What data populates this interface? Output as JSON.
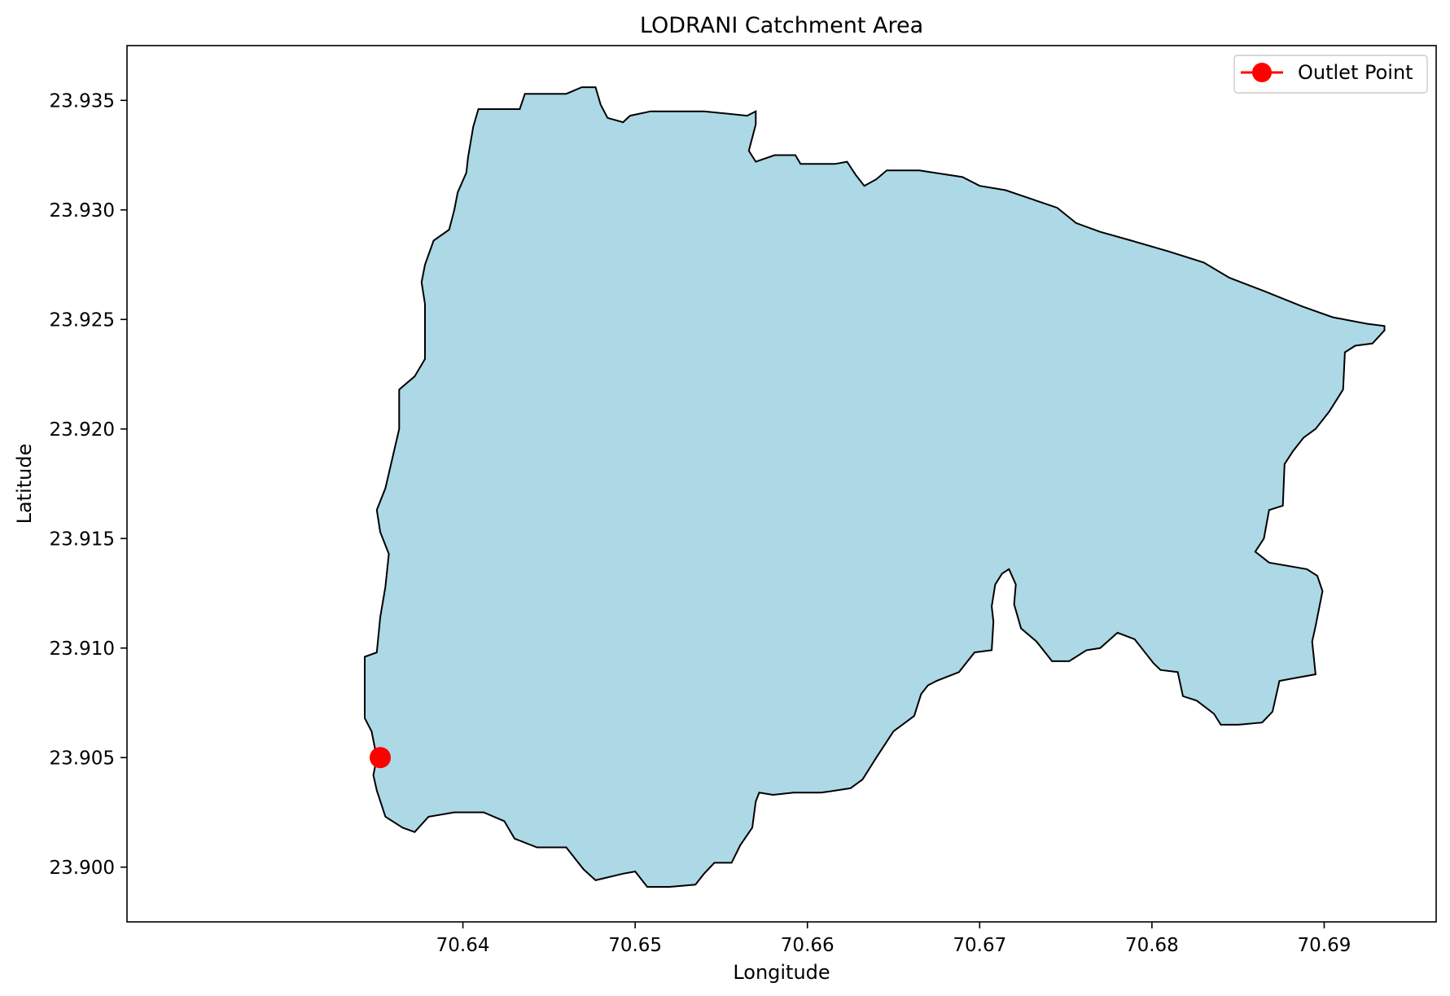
{
  "chart_data": {
    "type": "map",
    "title": "LODRANI Catchment Area",
    "xlabel": "Longitude",
    "ylabel": "Latitude",
    "xlim": [
      70.6205,
      70.6965
    ],
    "ylim": [
      23.8975,
      23.9375
    ],
    "x_ticks": [
      70.64,
      70.65,
      70.66,
      70.67,
      70.68,
      70.69
    ],
    "x_tick_labels": [
      "70.64",
      "70.65",
      "70.66",
      "70.67",
      "70.68",
      "70.69"
    ],
    "y_ticks": [
      23.9,
      23.905,
      23.91,
      23.915,
      23.92,
      23.925,
      23.93,
      23.935
    ],
    "y_tick_labels": [
      "23.900",
      "23.905",
      "23.910",
      "23.915",
      "23.920",
      "23.925",
      "23.930",
      "23.935"
    ],
    "grid": false,
    "legend": {
      "placement": "top-right",
      "entries": [
        {
          "label": "Outlet Point",
          "marker": "circle",
          "color": "#ff0000"
        }
      ]
    },
    "catchment": {
      "fill": "#add8e6",
      "edge": "#000000",
      "boundary": [
        [
          70.6343,
          23.9068
        ],
        [
          70.6343,
          23.9096
        ],
        [
          70.635,
          23.9098
        ],
        [
          70.6352,
          23.9114
        ],
        [
          70.6355,
          23.9128
        ],
        [
          70.6357,
          23.9143
        ],
        [
          70.6352,
          23.9153
        ],
        [
          70.635,
          23.9163
        ],
        [
          70.6355,
          23.9173
        ],
        [
          70.6363,
          23.92
        ],
        [
          70.6363,
          23.9218
        ],
        [
          70.6372,
          23.9224
        ],
        [
          70.6378,
          23.9232
        ],
        [
          70.6378,
          23.9257
        ],
        [
          70.6376,
          23.9267
        ],
        [
          70.6378,
          23.9275
        ],
        [
          70.6383,
          23.9286
        ],
        [
          70.6392,
          23.9291
        ],
        [
          70.6395,
          23.93
        ],
        [
          70.6397,
          23.9308
        ],
        [
          70.6402,
          23.9317
        ],
        [
          70.6403,
          23.9324
        ],
        [
          70.6406,
          23.9338
        ],
        [
          70.6409,
          23.9346
        ],
        [
          70.6433,
          23.9346
        ],
        [
          70.6436,
          23.9353
        ],
        [
          70.646,
          23.9353
        ],
        [
          70.6469,
          23.9356
        ],
        [
          70.6477,
          23.9356
        ],
        [
          70.648,
          23.9348
        ],
        [
          70.6484,
          23.9342
        ],
        [
          70.6493,
          23.934
        ],
        [
          70.6497,
          23.9343
        ],
        [
          70.6509,
          23.9345
        ],
        [
          70.654,
          23.9345
        ],
        [
          70.6565,
          23.9343
        ],
        [
          70.657,
          23.9345
        ],
        [
          70.657,
          23.9339
        ],
        [
          70.6566,
          23.9327
        ],
        [
          70.657,
          23.9322
        ],
        [
          70.6581,
          23.9325
        ],
        [
          70.6593,
          23.9325
        ],
        [
          70.6596,
          23.9321
        ],
        [
          70.6616,
          23.9321
        ],
        [
          70.6623,
          23.9322
        ],
        [
          70.6628,
          23.9316
        ],
        [
          70.6633,
          23.9311
        ],
        [
          70.664,
          23.9314
        ],
        [
          70.6646,
          23.9318
        ],
        [
          70.6656,
          23.9318
        ],
        [
          70.6665,
          23.9318
        ],
        [
          70.669,
          23.9315
        ],
        [
          70.67,
          23.9311
        ],
        [
          70.6715,
          23.9309
        ],
        [
          70.673,
          23.9305
        ],
        [
          70.6745,
          23.9301
        ],
        [
          70.6756,
          23.9294
        ],
        [
          70.677,
          23.929
        ],
        [
          70.6788,
          23.9286
        ],
        [
          70.681,
          23.9281
        ],
        [
          70.683,
          23.9276
        ],
        [
          70.6845,
          23.9269
        ],
        [
          70.6865,
          23.9263
        ],
        [
          70.6887,
          23.9256
        ],
        [
          70.6905,
          23.9251
        ],
        [
          70.6925,
          23.9248
        ],
        [
          70.6935,
          23.9247
        ],
        [
          70.6935,
          23.9245
        ],
        [
          70.6928,
          23.9239
        ],
        [
          70.6918,
          23.9238
        ],
        [
          70.6912,
          23.9235
        ],
        [
          70.6911,
          23.9218
        ],
        [
          70.6903,
          23.9208
        ],
        [
          70.6895,
          23.92
        ],
        [
          70.6888,
          23.9196
        ],
        [
          70.6882,
          23.919
        ],
        [
          70.6877,
          23.9184
        ],
        [
          70.6876,
          23.9165
        ],
        [
          70.6868,
          23.9163
        ],
        [
          70.6865,
          23.915
        ],
        [
          70.686,
          23.9144
        ],
        [
          70.6868,
          23.9139
        ],
        [
          70.689,
          23.9136
        ],
        [
          70.6896,
          23.9133
        ],
        [
          70.6899,
          23.9126
        ],
        [
          70.6895,
          23.911
        ],
        [
          70.6893,
          23.9103
        ],
        [
          70.6895,
          23.9088
        ],
        [
          70.6881,
          23.9086
        ],
        [
          70.6874,
          23.9085
        ],
        [
          70.687,
          23.9071
        ],
        [
          70.6864,
          23.9066
        ],
        [
          70.685,
          23.9065
        ],
        [
          70.684,
          23.9065
        ],
        [
          70.6836,
          23.907
        ],
        [
          70.6826,
          23.9076
        ],
        [
          70.6818,
          23.9078
        ],
        [
          70.6815,
          23.9089
        ],
        [
          70.6805,
          23.909
        ],
        [
          70.6801,
          23.9093
        ],
        [
          70.679,
          23.9104
        ],
        [
          70.678,
          23.9107
        ],
        [
          70.677,
          23.91
        ],
        [
          70.6762,
          23.9099
        ],
        [
          70.6752,
          23.9094
        ],
        [
          70.6742,
          23.9094
        ],
        [
          70.6733,
          23.9103
        ],
        [
          70.6724,
          23.9109
        ],
        [
          70.672,
          23.912
        ],
        [
          70.6721,
          23.9129
        ],
        [
          70.6717,
          23.9136
        ],
        [
          70.6713,
          23.9134
        ],
        [
          70.6709,
          23.9129
        ],
        [
          70.6707,
          23.9119
        ],
        [
          70.6708,
          23.9112
        ],
        [
          70.6707,
          23.9099
        ],
        [
          70.6697,
          23.9098
        ],
        [
          70.6688,
          23.9089
        ],
        [
          70.6675,
          23.9085
        ],
        [
          70.667,
          23.9083
        ],
        [
          70.6666,
          23.9079
        ],
        [
          70.6662,
          23.9069
        ],
        [
          70.665,
          23.9062
        ],
        [
          70.664,
          23.905
        ],
        [
          70.6632,
          23.904
        ],
        [
          70.6625,
          23.9036
        ],
        [
          70.6608,
          23.9034
        ],
        [
          70.6592,
          23.9034
        ],
        [
          70.658,
          23.9033
        ],
        [
          70.6572,
          23.9034
        ],
        [
          70.657,
          23.903
        ],
        [
          70.6568,
          23.9018
        ],
        [
          70.6561,
          23.901
        ],
        [
          70.6556,
          23.9002
        ],
        [
          70.6546,
          23.9002
        ],
        [
          70.654,
          23.8997
        ],
        [
          70.6535,
          23.8992
        ],
        [
          70.652,
          23.8991
        ],
        [
          70.6507,
          23.8991
        ],
        [
          70.65,
          23.8998
        ],
        [
          70.6493,
          23.8997
        ],
        [
          70.6477,
          23.8994
        ],
        [
          70.647,
          23.8999
        ],
        [
          70.646,
          23.9009
        ],
        [
          70.6443,
          23.9009
        ],
        [
          70.643,
          23.9013
        ],
        [
          70.6424,
          23.9021
        ],
        [
          70.6412,
          23.9025
        ],
        [
          70.6395,
          23.9025
        ],
        [
          70.638,
          23.9023
        ],
        [
          70.6372,
          23.9016
        ],
        [
          70.6365,
          23.9018
        ],
        [
          70.6355,
          23.9023
        ],
        [
          70.635,
          23.9035
        ],
        [
          70.6348,
          23.9042
        ],
        [
          70.635,
          23.905
        ],
        [
          70.6347,
          23.9062
        ]
      ]
    },
    "outlet_point": {
      "label": "Outlet Point",
      "lon": 70.6352,
      "lat": 23.905,
      "color": "#ff0000"
    }
  }
}
